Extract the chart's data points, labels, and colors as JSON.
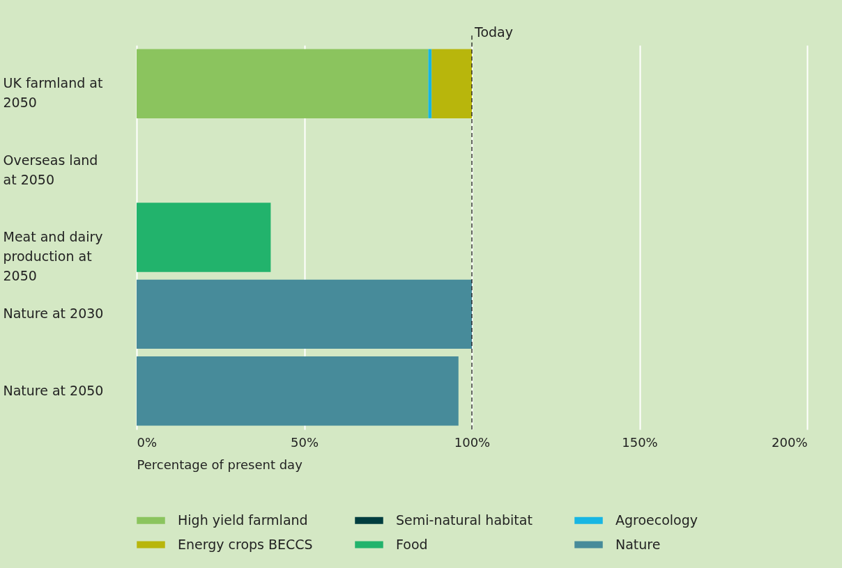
{
  "chart_data": {
    "type": "bar",
    "orientation": "horizontal",
    "stacked": true,
    "categories": [
      "UK farmland at 2050",
      "Overseas land at 2050",
      "Meat and dairy production at 2050",
      "Nature at 2030",
      "Nature at 2050"
    ],
    "series": [
      {
        "name": "High yield farmland",
        "color": "#8bc45e",
        "values": [
          87,
          null,
          null,
          null,
          null
        ]
      },
      {
        "name": "Agroecology",
        "color": "#17b6e3",
        "values": [
          1,
          null,
          null,
          null,
          null
        ]
      },
      {
        "name": "Energy crops BECCS",
        "color": "#b8b60c",
        "values": [
          12,
          null,
          null,
          null,
          null
        ]
      },
      {
        "name": "Semi-natural habitat",
        "color": "#003d3f",
        "values": [
          null,
          null,
          null,
          null,
          null
        ]
      },
      {
        "name": "Food",
        "color": "#22b36c",
        "values": [
          null,
          null,
          40,
          null,
          null
        ]
      },
      {
        "name": "Nature",
        "color": "#478b9a",
        "values": [
          null,
          null,
          null,
          100,
          96
        ]
      }
    ],
    "xlabel": "Percentage of present day",
    "xlim": [
      0,
      200
    ],
    "xticks": [
      {
        "value": 0,
        "label": "0%"
      },
      {
        "value": 50,
        "label": "50%"
      },
      {
        "value": 100,
        "label": "100%"
      },
      {
        "value": 150,
        "label": "150%"
      },
      {
        "value": 200,
        "label": "200%"
      }
    ],
    "ref_lines": [
      {
        "axis": "x",
        "value": 100,
        "label": "Today",
        "line_style": "dashed",
        "color": "#1a1a1a"
      }
    ],
    "grid": "x",
    "legend": "bottom"
  }
}
